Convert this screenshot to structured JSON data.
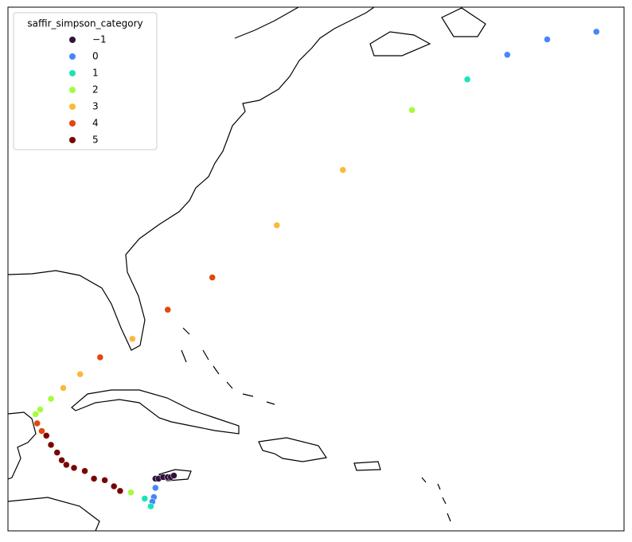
{
  "chart_data": {
    "type": "scatter",
    "legend_title": "saffir_simpson_category",
    "legend": "upper left",
    "xlim": [
      -89.1,
      -49.0
    ],
    "ylim": [
      11.0,
      45.1
    ],
    "series": [
      {
        "name": "−1",
        "color": "#30123b",
        "x": [
          -79.5,
          -79.3,
          -79.0,
          -78.7,
          -78.5,
          -78.3
        ],
        "values": [
          14.4,
          14.4,
          14.5,
          14.5,
          14.5,
          14.6
        ]
      },
      {
        "name": "0",
        "color": "#4686fb",
        "x": [
          -50.8,
          -54.0,
          -56.6,
          -79.5,
          -79.6,
          -79.7
        ],
        "values": [
          43.5,
          43.0,
          42.0,
          13.8,
          13.2,
          12.9
        ]
      },
      {
        "name": "1",
        "color": "#1ae4b6",
        "x": [
          -59.2,
          -80.2,
          -79.8
        ],
        "values": [
          40.4,
          13.1,
          12.6
        ]
      },
      {
        "name": "2",
        "color": "#a4fc3c",
        "x": [
          -62.8,
          -81.1,
          -86.3,
          -87.0,
          -87.3
        ],
        "values": [
          38.4,
          13.5,
          19.6,
          18.9,
          18.6
        ]
      },
      {
        "name": "3",
        "color": "#fbb938",
        "x": [
          -67.3,
          -71.6,
          -81.0,
          -84.4,
          -85.5
        ],
        "values": [
          34.5,
          30.9,
          23.5,
          21.2,
          20.3
        ]
      },
      {
        "name": "4",
        "color": "#e4460a",
        "x": [
          -75.8,
          -78.7,
          -83.1,
          -87.2,
          -86.9
        ],
        "values": [
          27.5,
          25.4,
          22.3,
          18.0,
          17.5
        ]
      },
      {
        "name": "5",
        "color": "#7a0403",
        "x": [
          -86.6,
          -86.3,
          -85.9,
          -85.6,
          -85.3,
          -84.8,
          -84.1,
          -83.5,
          -82.8,
          -82.2,
          -81.8
        ],
        "values": [
          17.2,
          16.6,
          16.1,
          15.6,
          15.3,
          15.1,
          14.9,
          14.4,
          14.3,
          13.9,
          13.6
        ]
      }
    ]
  }
}
